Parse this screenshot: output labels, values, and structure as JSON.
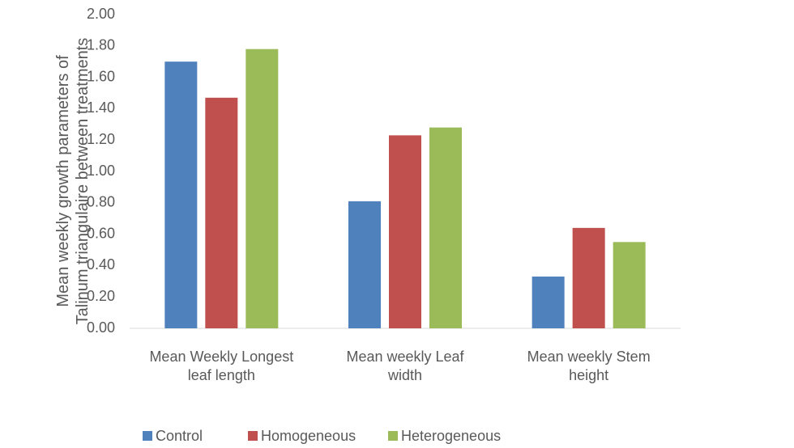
{
  "chart_data": {
    "type": "bar",
    "y_label": "Mean weekly growth parameters of\nTalinum triangulaire  between treatments",
    "categories": [
      "Mean Weekly Longest\nleaf length",
      "Mean weekly Leaf\nwidth",
      "Mean weekly Stem\nheight"
    ],
    "series": [
      {
        "name": "Control",
        "color": "#4f81bd",
        "values": [
          1.7,
          0.81,
          0.33
        ]
      },
      {
        "name": "Homogeneous",
        "color": "#c0504d",
        "values": [
          1.47,
          1.23,
          0.64
        ]
      },
      {
        "name": "Heterogeneous",
        "color": "#9bbb59",
        "values": [
          1.78,
          1.28,
          0.55
        ]
      }
    ],
    "ylim": [
      0,
      2
    ],
    "yticks": [
      {
        "value": 0,
        "label": "0.00"
      },
      {
        "value": 0.2,
        "label": "0.20"
      },
      {
        "value": 0.4,
        "label": "0.40"
      },
      {
        "value": 0.6,
        "label": "0.60"
      },
      {
        "value": 0.8,
        "label": "0.80"
      },
      {
        "value": 1,
        "label": "1.00"
      },
      {
        "value": 1.2,
        "label": "1.20"
      },
      {
        "value": 1.4,
        "label": "1.40"
      },
      {
        "value": 1.6,
        "label": "1.60"
      },
      {
        "value": 1.8,
        "label": "1.80"
      },
      {
        "value": 2,
        "label": "2.00"
      }
    ],
    "grid": false,
    "legend": "bottom"
  }
}
